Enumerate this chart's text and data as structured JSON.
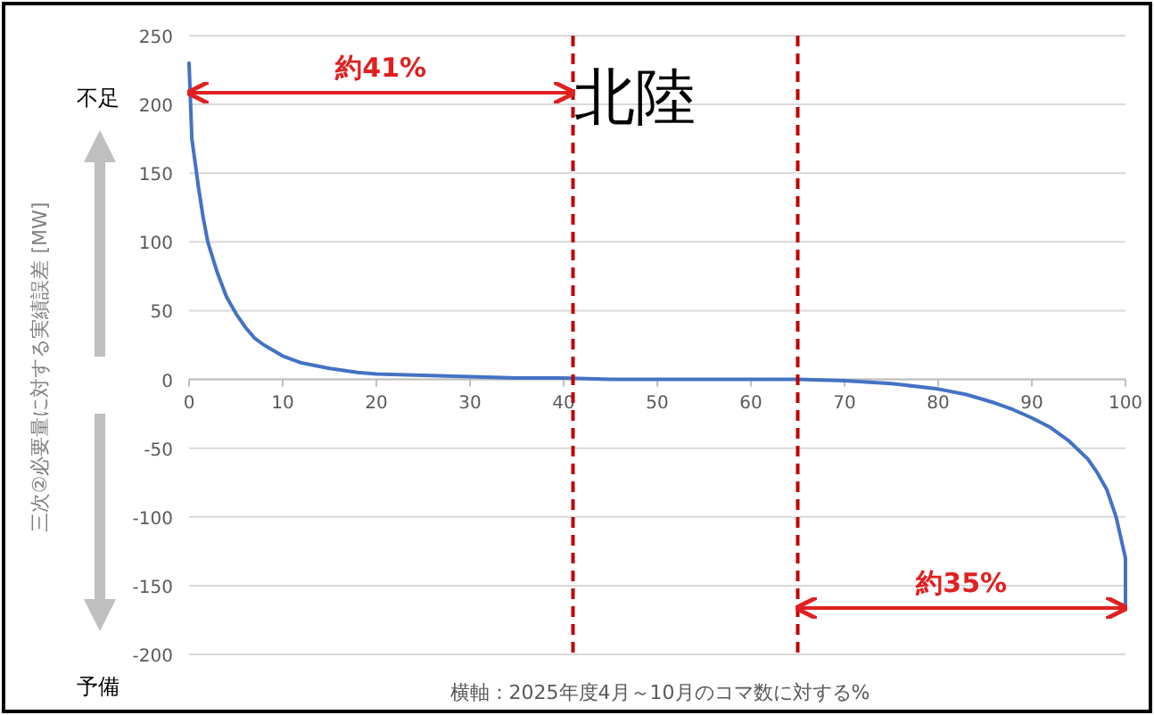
{
  "chart_data": {
    "type": "line",
    "title": "北陸",
    "ylabel": "三次②必要量に対する実績誤差 [MW]",
    "xlabel": "横軸：2025年度4月～10月のコマ数に対する%",
    "annotations": [
      "約41%",
      "約35%",
      "不足",
      "予備"
    ],
    "x": [
      0,
      0.3,
      0.6,
      1,
      1.5,
      2,
      3,
      4,
      5,
      6,
      7,
      8,
      10,
      12,
      15,
      18,
      20,
      25,
      30,
      35,
      40,
      45,
      50,
      55,
      60,
      65,
      70,
      75,
      80,
      83,
      86,
      88,
      90,
      92,
      94,
      96,
      97,
      98,
      99,
      99.5,
      100,
      100
    ],
    "series": [
      {
        "color": "#4472c4",
        "values": [
          230,
          175,
          160,
          140,
          118,
          100,
          78,
          60,
          48,
          38,
          30,
          25,
          17,
          12,
          8,
          5,
          4,
          3,
          2,
          1,
          1,
          0,
          0,
          0,
          0,
          0,
          -1,
          -3,
          -7,
          -11,
          -17,
          -22,
          -28,
          -35,
          -45,
          -58,
          -68,
          -80,
          -100,
          -115,
          -130,
          -167
        ]
      }
    ],
    "xlim": [
      0,
      100
    ],
    "xticks": [
      0,
      10,
      20,
      30,
      40,
      50,
      60,
      70,
      80,
      90,
      100
    ],
    "ylim": [
      -200,
      250
    ],
    "yticks": [
      -200,
      -150,
      -100,
      -50,
      0,
      50,
      100,
      150,
      200,
      250
    ],
    "grid": "y",
    "marker": "none",
    "line_style": "solid",
    "ref_lines": [
      {
        "axis": "x",
        "value": 41,
        "color": "#c00000",
        "line_style": "dashed"
      },
      {
        "axis": "x",
        "value": 65,
        "color": "#c00000",
        "line_style": "dashed"
      }
    ]
  }
}
